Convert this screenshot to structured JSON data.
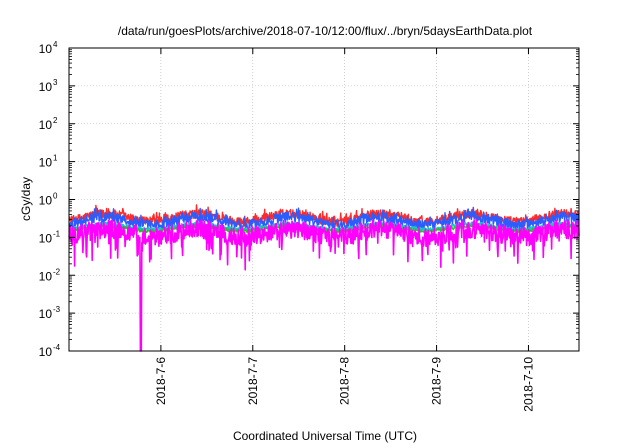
{
  "chart_data": {
    "type": "line",
    "title": "/data/run/goesPlots/archive/2018-07-10/12:00/flux/../bryn/5daysEarthData.plot",
    "xlabel": "Coordinated Universal Time (UTC)",
    "ylabel": "cGy/day",
    "y_scale": "log",
    "ylim": [
      0.0001,
      10000
    ],
    "xlim_days": [
      0,
      5.55
    ],
    "x_ticks": [
      {
        "label": "2018-7-6",
        "day": 1
      },
      {
        "label": "2018-7-7",
        "day": 2
      },
      {
        "label": "2018-7-8",
        "day": 3
      },
      {
        "label": "2018-7-9",
        "day": 4
      },
      {
        "label": "2018-7-10",
        "day": 5
      }
    ],
    "y_ticks": [
      {
        "base": "10",
        "exp": "4",
        "value": 10000
      },
      {
        "base": "10",
        "exp": "3",
        "value": 1000
      },
      {
        "base": "10",
        "exp": "2",
        "value": 100
      },
      {
        "base": "10",
        "exp": "1",
        "value": 10
      },
      {
        "base": "10",
        "exp": "0",
        "value": 1
      },
      {
        "base": "10",
        "exp": "-1",
        "value": 0.1
      },
      {
        "base": "10",
        "exp": "-2",
        "value": 0.01
      },
      {
        "base": "10",
        "exp": "-3",
        "value": 0.001
      },
      {
        "base": "10",
        "exp": "-4",
        "value": 0.0001
      }
    ],
    "grid": true,
    "series": [
      {
        "color": "#ff2a2a",
        "base": 0.33,
        "amp": 0.35,
        "noise": 0.12
      },
      {
        "color": "#2b5cff",
        "base": 0.27,
        "amp": 0.35,
        "noise": 0.14
      },
      {
        "color": "#10c8c8",
        "base": 0.19,
        "amp": 0.25,
        "noise": 0.05
      },
      {
        "color": "#33b833",
        "base": 0.17,
        "amp": 0.22,
        "noise": 0.04
      },
      {
        "color": "#ff00ff",
        "base": 0.13,
        "amp": 0.35,
        "noise": 0.25,
        "dip_day": 0.78
      }
    ]
  }
}
